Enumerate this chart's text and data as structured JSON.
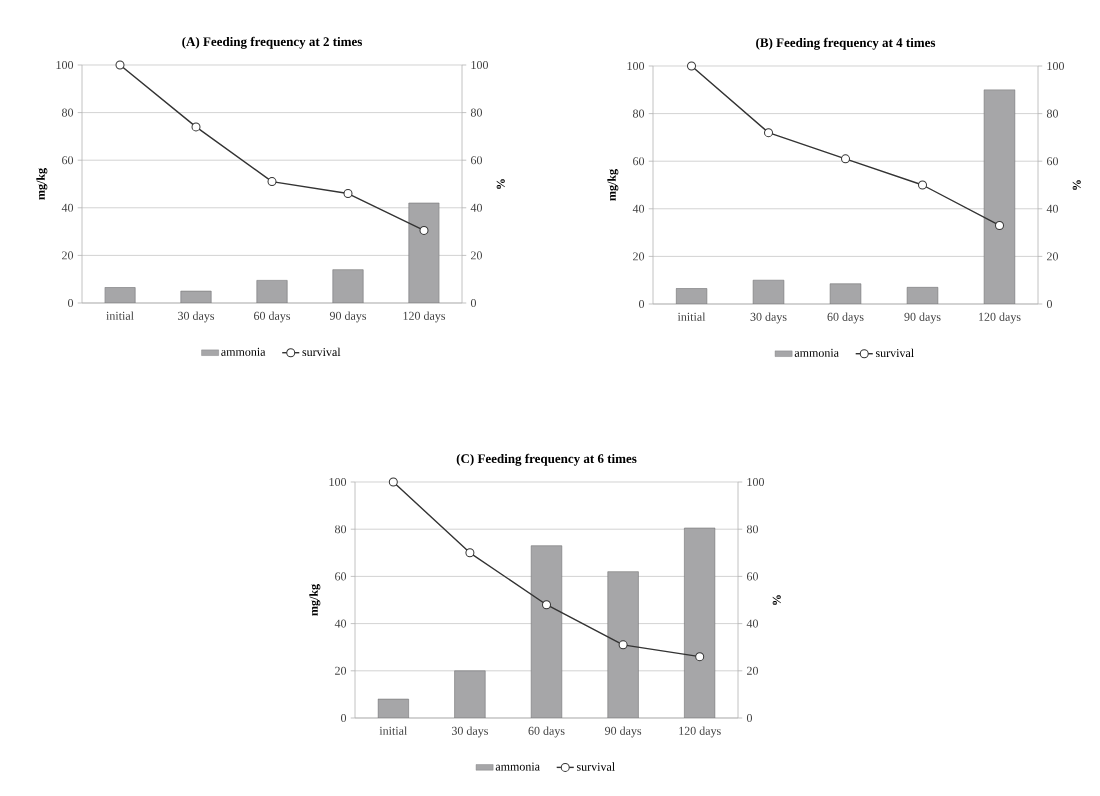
{
  "chart_data": [
    {
      "type": "bar",
      "title": "(A) Feeding frequency at 2 times",
      "ylabel": "mg/kg",
      "y2label": "%",
      "categories": [
        "initial",
        "30 days",
        "60 days",
        "90 days",
        "120 days"
      ],
      "series": [
        {
          "name": "ammonia",
          "color": "#a6a6a8",
          "values": [
            6.5,
            5,
            9.5,
            14,
            42
          ]
        },
        {
          "name": "survival",
          "type": "line",
          "axis": "y2",
          "color": "#333333",
          "values": [
            100,
            74,
            51,
            46,
            30.5
          ]
        }
      ],
      "ylim": [
        0,
        100
      ],
      "yticks": [
        0,
        20,
        40,
        60,
        80,
        100
      ],
      "y2lim": [
        0,
        100
      ],
      "y2ticks": [
        0,
        20,
        40,
        60,
        80,
        100
      ],
      "grid": "y",
      "legend": "bottom",
      "marker": "circle"
    },
    {
      "type": "bar",
      "title": "(B) Feeding frequency at 4 times",
      "ylabel": "mg/kg",
      "y2label": "%",
      "categories": [
        "initial",
        "30 days",
        "60 days",
        "90 days",
        "120 days"
      ],
      "series": [
        {
          "name": "ammonia",
          "color": "#a6a6a8",
          "values": [
            6.5,
            10,
            8.5,
            7,
            90
          ]
        },
        {
          "name": "survival",
          "type": "line",
          "axis": "y2",
          "color": "#333333",
          "values": [
            100,
            72,
            61,
            50,
            33
          ]
        }
      ],
      "ylim": [
        0,
        100
      ],
      "yticks": [
        0,
        20,
        40,
        60,
        80,
        100
      ],
      "y2lim": [
        0,
        100
      ],
      "y2ticks": [
        0,
        20,
        40,
        60,
        80,
        100
      ],
      "grid": "y",
      "legend": "bottom",
      "marker": "circle"
    },
    {
      "type": "bar",
      "title": "(C) Feeding frequency at 6 times",
      "ylabel": "mg/kg",
      "y2label": "%",
      "categories": [
        "initial",
        "30 days",
        "60 days",
        "90 days",
        "120 days"
      ],
      "series": [
        {
          "name": "ammonia",
          "color": "#a6a6a8",
          "values": [
            8,
            20,
            73,
            62,
            80.5
          ]
        },
        {
          "name": "survival",
          "type": "line",
          "axis": "y2",
          "color": "#333333",
          "values": [
            100,
            70,
            48,
            31,
            26
          ]
        }
      ],
      "ylim": [
        0,
        100
      ],
      "yticks": [
        0,
        20,
        40,
        60,
        80,
        100
      ],
      "y2lim": [
        0,
        100
      ],
      "y2ticks": [
        0,
        20,
        40,
        60,
        80,
        100
      ],
      "grid": "y",
      "legend": "bottom",
      "marker": "circle"
    }
  ]
}
